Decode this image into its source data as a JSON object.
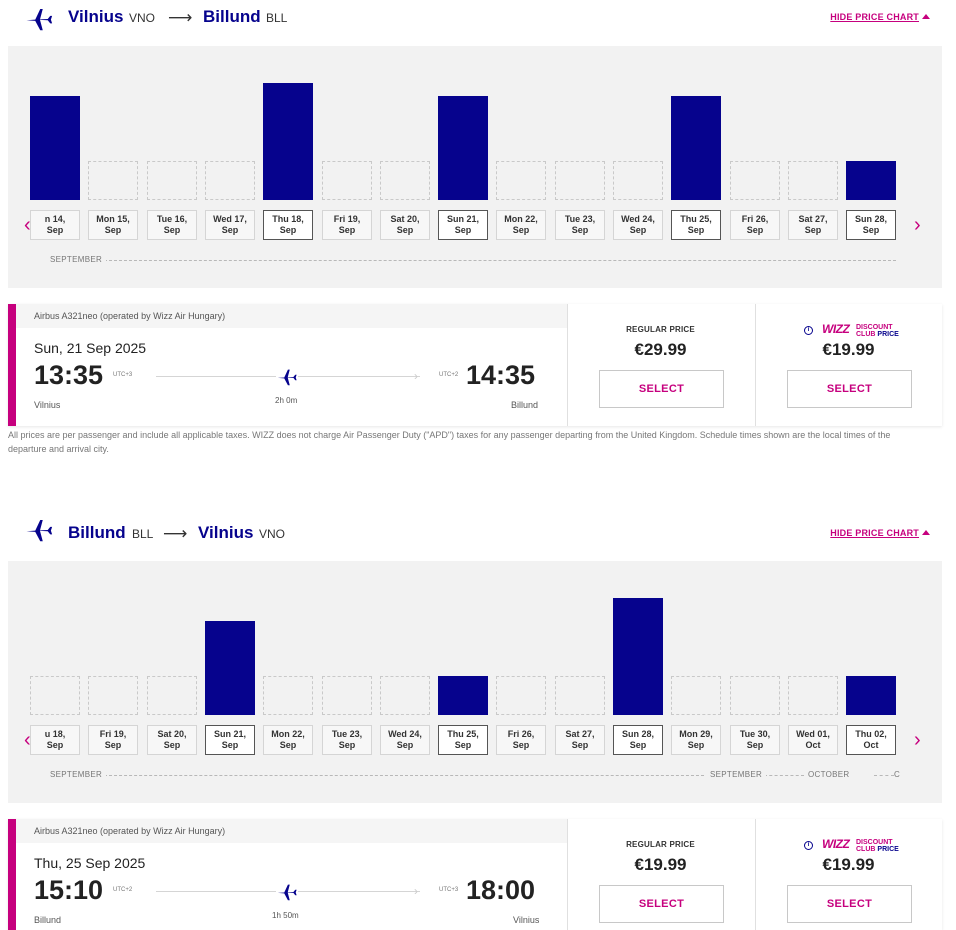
{
  "outbound": {
    "header": {
      "from_city": "Vilnius",
      "from_code": "VNO",
      "arrow": "⟶",
      "to_city": "Billund",
      "to_code": "BLL",
      "hide_chart": "HIDE PRICE CHART"
    },
    "days": [
      {
        "label": "n 14, Sep",
        "level": 0.8,
        "empty": false,
        "selected": false
      },
      {
        "label": "Mon 15, Sep",
        "level": 0.3,
        "empty": true,
        "selected": false
      },
      {
        "label": "Tue 16, Sep",
        "level": 0.3,
        "empty": true,
        "selected": false
      },
      {
        "label": "Wed 17, Sep",
        "level": 0.3,
        "empty": true,
        "selected": false
      },
      {
        "label": "Thu 18, Sep",
        "level": 0.9,
        "empty": false,
        "selected": true
      },
      {
        "label": "Fri 19, Sep",
        "level": 0.3,
        "empty": true,
        "selected": false
      },
      {
        "label": "Sat 20, Sep",
        "level": 0.3,
        "empty": true,
        "selected": false
      },
      {
        "label": "Sun 21, Sep",
        "level": 0.8,
        "empty": false,
        "selected": true
      },
      {
        "label": "Mon 22, Sep",
        "level": 0.3,
        "empty": true,
        "selected": false
      },
      {
        "label": "Tue 23, Sep",
        "level": 0.3,
        "empty": true,
        "selected": false
      },
      {
        "label": "Wed 24, Sep",
        "level": 0.3,
        "empty": true,
        "selected": false
      },
      {
        "label": "Thu 25, Sep",
        "level": 0.8,
        "empty": false,
        "selected": true
      },
      {
        "label": "Fri 26, Sep",
        "level": 0.3,
        "empty": true,
        "selected": false
      },
      {
        "label": "Sat 27, Sep",
        "level": 0.3,
        "empty": true,
        "selected": false
      },
      {
        "label": "Sun 28, Sep",
        "level": 0.3,
        "empty": false,
        "selected": true
      }
    ],
    "months": [
      "SEPTEMBER"
    ],
    "flight": {
      "aircraft": "Airbus A321neo (operated by Wizz Air Hungary)",
      "date": "Sun, 21 Sep 2025",
      "dep_time": "13:35",
      "dep_utc": "UTC+3",
      "dep_city": "Vilnius",
      "duration": "2h 0m",
      "arr_time": "14:35",
      "arr_utc": "UTC+2",
      "arr_city": "Billund",
      "regular_label": "REGULAR PRICE",
      "regular_price": "€29.99",
      "club_logo": "WIZZ",
      "club_line1": "DISCOUNT",
      "club_line2a": "CLUB",
      "club_line2b": "PRICE",
      "club_price": "€19.99",
      "select_label": "SELECT"
    }
  },
  "disclaimer": "All prices are per passenger and include all applicable taxes. WIZZ does not charge Air Passenger Duty (\"APD\") taxes for any passenger departing from the United Kingdom. Schedule times shown are the local times of the departure and arrival city.",
  "inbound": {
    "header": {
      "from_city": "Billund",
      "from_code": "BLL",
      "arrow": "⟶",
      "to_city": "Vilnius",
      "to_code": "VNO",
      "hide_chart": "HIDE PRICE CHART"
    },
    "days": [
      {
        "label": "u 18, Sep",
        "level": 0.3,
        "empty": true,
        "selected": false
      },
      {
        "label": "Fri 19, Sep",
        "level": 0.3,
        "empty": true,
        "selected": false
      },
      {
        "label": "Sat 20, Sep",
        "level": 0.3,
        "empty": true,
        "selected": false
      },
      {
        "label": "Sun 21, Sep",
        "level": 0.72,
        "empty": false,
        "selected": true
      },
      {
        "label": "Mon 22, Sep",
        "level": 0.3,
        "empty": true,
        "selected": false
      },
      {
        "label": "Tue 23, Sep",
        "level": 0.3,
        "empty": true,
        "selected": false
      },
      {
        "label": "Wed 24, Sep",
        "level": 0.3,
        "empty": true,
        "selected": false
      },
      {
        "label": "Thu 25, Sep",
        "level": 0.3,
        "empty": false,
        "selected": true
      },
      {
        "label": "Fri 26, Sep",
        "level": 0.3,
        "empty": true,
        "selected": false
      },
      {
        "label": "Sat 27, Sep",
        "level": 0.3,
        "empty": true,
        "selected": false
      },
      {
        "label": "Sun 28, Sep",
        "level": 0.9,
        "empty": false,
        "selected": true
      },
      {
        "label": "Mon 29, Sep",
        "level": 0.3,
        "empty": true,
        "selected": false
      },
      {
        "label": "Tue 30, Sep",
        "level": 0.3,
        "empty": true,
        "selected": false
      },
      {
        "label": "Wed 01, Oct",
        "level": 0.3,
        "empty": true,
        "selected": false
      },
      {
        "label": "Thu 02, Oct",
        "level": 0.3,
        "empty": false,
        "selected": true
      }
    ],
    "months": [
      "SEPTEMBER",
      "SEPTEMBER",
      "OCTOBER",
      "C"
    ],
    "flight": {
      "aircraft": "Airbus A321neo (operated by Wizz Air Hungary)",
      "date": "Thu, 25 Sep 2025",
      "dep_time": "15:10",
      "dep_utc": "UTC+2",
      "dep_city": "Billund",
      "duration": "1h 50m",
      "arr_time": "18:00",
      "arr_utc": "UTC+3",
      "arr_city": "Vilnius",
      "regular_label": "REGULAR PRICE",
      "regular_price": "€19.99",
      "club_logo": "WIZZ",
      "club_line1": "DISCOUNT",
      "club_line2a": "CLUB",
      "club_line2b": "PRICE",
      "club_price": "€19.99",
      "select_label": "SELECT"
    }
  },
  "colors": {
    "brand_blue": "#06038d",
    "brand_pink": "#c6007e"
  },
  "icons": {
    "plane": "airplane-icon",
    "prev": "chevron-left-icon",
    "next": "chevron-right-icon",
    "info": "info-icon"
  }
}
